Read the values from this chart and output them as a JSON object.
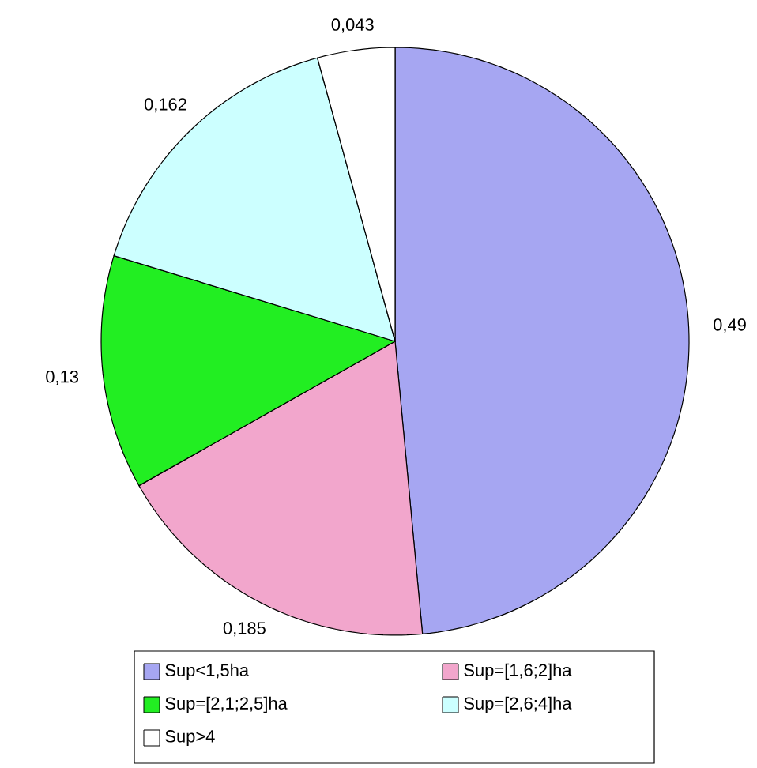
{
  "chart_data": {
    "type": "pie",
    "categories": [
      "Sup<1,5ha",
      "Sup=[1,6;2]ha",
      "Sup=[2,1;2,5]ha",
      "Sup=[2,6;4]ha",
      "Sup>4"
    ],
    "values": [
      0.49,
      0.185,
      0.13,
      0.162,
      0.043
    ],
    "value_labels": [
      "0,49",
      "0,185",
      "0,13",
      "0,162",
      "0,043"
    ],
    "colors": [
      "#a6a6f2",
      "#f2a6cc",
      "#22ee22",
      "#ccffff",
      "#ffffff"
    ],
    "legend": "bottom"
  }
}
